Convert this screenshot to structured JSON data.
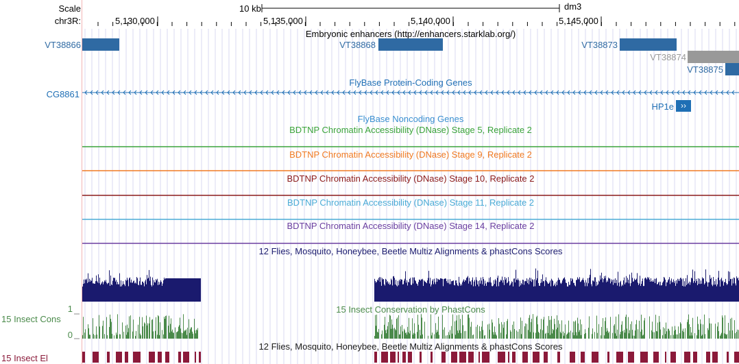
{
  "ruler": {
    "scale_label": "Scale",
    "chrom_label": "chr3R:",
    "scalebar_label": "10 kb",
    "assembly": "dm3",
    "ticks": [
      "5,130,000",
      "5,135,000",
      "5,140,000",
      "5,145,000"
    ]
  },
  "tracks": {
    "enhancers": {
      "title": "Embryonic enhancers (http://enhancers.starklab.org/)",
      "items": [
        "VT38866",
        "VT38868",
        "VT38873",
        "VT38874",
        "VT38875"
      ],
      "color": "#2f6aa3",
      "alt_color": "#999999"
    },
    "flybase_coding": {
      "title": "FlyBase Protein-Coding Genes",
      "left_gene": "CG8861",
      "right_gene": "HP1e",
      "color": "#1f6fb5"
    },
    "flybase_noncoding": {
      "title": "FlyBase Noncoding Genes",
      "color": "#3a8fd0"
    },
    "dnase": [
      {
        "title": "BDTNP Chromatin Accessibility (DNase) Stage 5, Replicate 2",
        "color": "#3aa33a"
      },
      {
        "title": "BDTNP Chromatin Accessibility (DNase) Stage 9, Replicate 2",
        "color": "#f07a22"
      },
      {
        "title": "BDTNP Chromatin Accessibility (DNase) Stage 10, Replicate 2",
        "color": "#8b1a1a"
      },
      {
        "title": "BDTNP Chromatin Accessibility (DNase) Stage 11, Replicate 2",
        "color": "#4aabd6"
      },
      {
        "title": "BDTNP Chromatin Accessibility (DNase) Stage 14, Replicate 2",
        "color": "#6b3fa0"
      }
    ],
    "multiz": {
      "title": "12 Flies, Mosquito, Honeybee, Beetle Multiz Alignments & phastCons Scores",
      "color": "#1a1a6e"
    },
    "phastcons": {
      "title": "15 Insect Conservation by PhastCons",
      "side_label": "15 Insect Cons",
      "axis_max": "1",
      "axis_min": "0",
      "color": "#4a8a4a"
    },
    "multiz2": {
      "title": "12 Flies, Mosquito, Honeybee, Beetle Multiz Alignments & phastCons Scores",
      "side_label": "15 Insect El",
      "color": "#8b1a3a"
    }
  }
}
